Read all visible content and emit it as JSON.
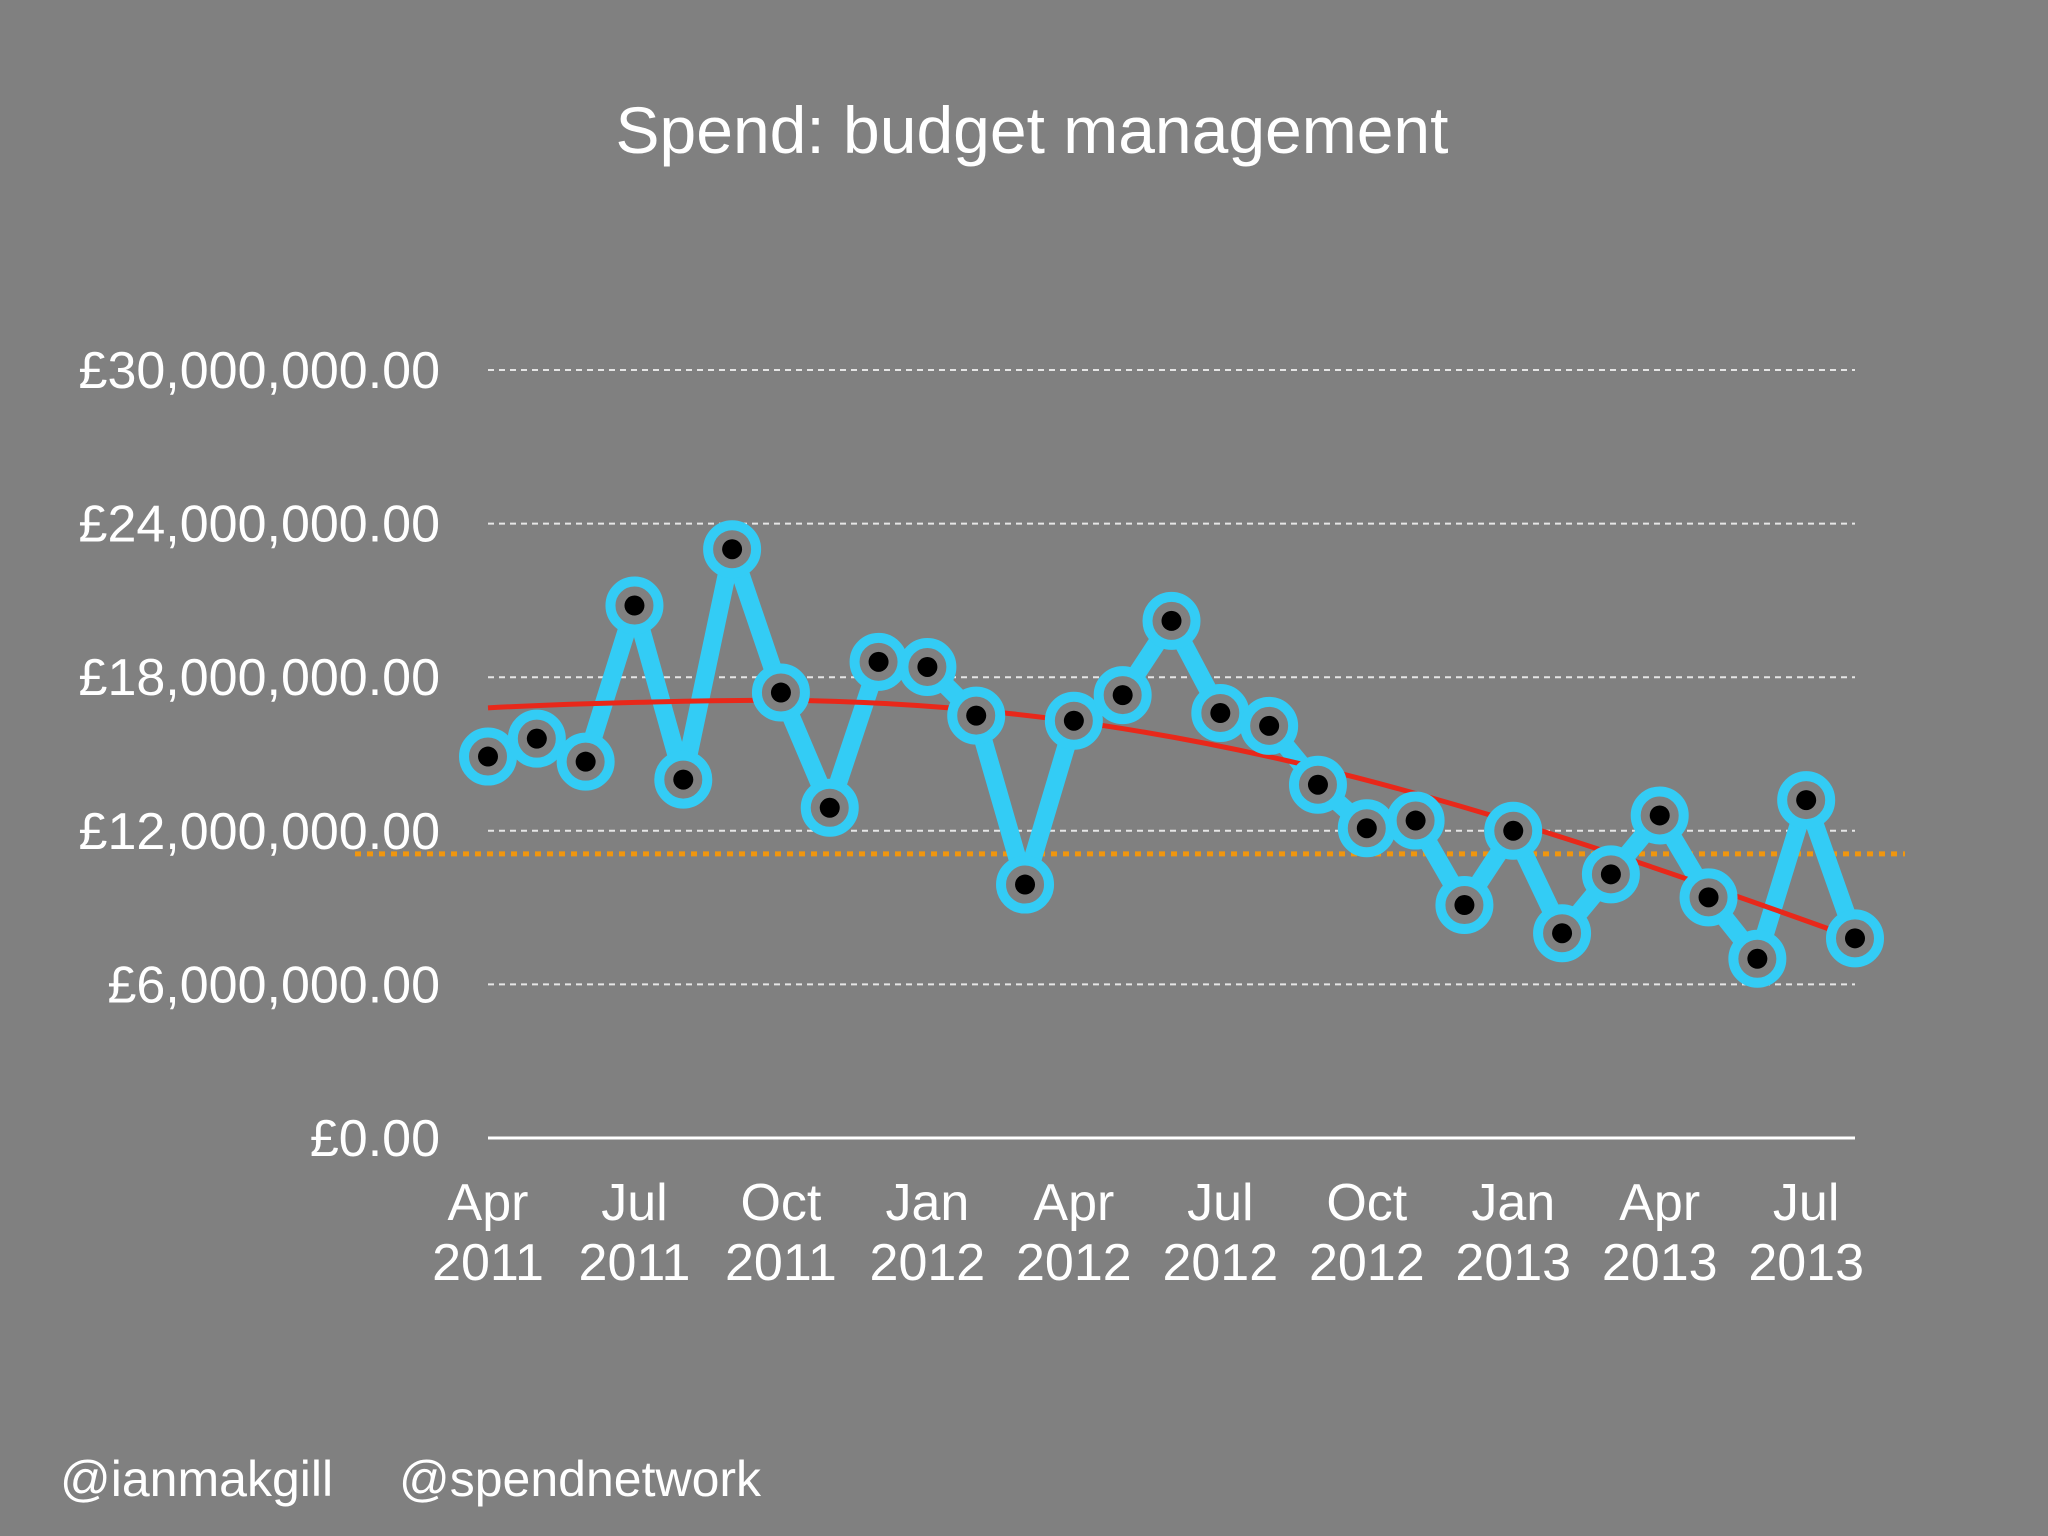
{
  "footer": {
    "handle_1": "@ianmakgill",
    "handle_2": "@spendnetwork"
  },
  "colors": {
    "background": "#808080",
    "series": "#33ccf5",
    "marker_fill": "#000000",
    "trend": "#e8281a",
    "average": "#f0960f",
    "grid": "#e6e6e6",
    "text": "#ffffff"
  },
  "chart_data": {
    "type": "line",
    "title": "Spend: budget management",
    "xlabel": "",
    "ylabel": "",
    "ylim": [
      0,
      30000000
    ],
    "y_ticks": [
      0,
      6000000,
      12000000,
      18000000,
      24000000,
      30000000
    ],
    "y_tick_labels": [
      "£0.00",
      "£6,000,000.00",
      "£12,000,000.00",
      "£18,000,000.00",
      "£24,000,000.00",
      "£30,000,000.00"
    ],
    "x_tick_labels": [
      {
        "month": "Apr",
        "year": "2011",
        "index": 0
      },
      {
        "month": "Jul",
        "year": "2011",
        "index": 3
      },
      {
        "month": "Oct",
        "year": "2011",
        "index": 6
      },
      {
        "month": "Jan",
        "year": "2012",
        "index": 9
      },
      {
        "month": "Apr",
        "year": "2012",
        "index": 12
      },
      {
        "month": "Jul",
        "year": "2012",
        "index": 15
      },
      {
        "month": "Oct",
        "year": "2012",
        "index": 18
      },
      {
        "month": "Jan",
        "year": "2013",
        "index": 21
      },
      {
        "month": "Apr",
        "year": "2013",
        "index": 24
      },
      {
        "month": "Jul",
        "year": "2013",
        "index": 27
      }
    ],
    "grid": "horizontal dotted",
    "legend": "none",
    "series": [
      {
        "x": [
          "Apr 2011",
          "May 2011",
          "Jun 2011",
          "Jul 2011",
          "Aug 2011",
          "Sep 2011",
          "Oct 2011",
          "Nov 2011",
          "Dec 2011",
          "Jan 2012",
          "Feb 2012",
          "Mar 2012",
          "Apr 2012",
          "May 2012",
          "Jun 2012",
          "Jul 2012",
          "Aug 2012",
          "Sep 2012",
          "Oct 2012",
          "Nov 2012",
          "Dec 2012",
          "Jan 2013",
          "Feb 2013",
          "Mar 2013",
          "Apr 2013",
          "May 2013",
          "Jun 2013",
          "Jul 2013",
          "Aug 2013"
        ],
        "values": [
          14900000,
          15600000,
          14700000,
          20800000,
          14000000,
          23000000,
          17400000,
          12900000,
          18600000,
          18400000,
          16500000,
          9900000,
          16300000,
          17300000,
          20200000,
          16600000,
          16100000,
          13800000,
          12100000,
          12400000,
          9100000,
          12000000,
          8000000,
          10300000,
          12600000,
          9400000,
          7000000,
          13200000,
          7800000
        ]
      }
    ],
    "trendline": {
      "type": "polynomial",
      "start": 16800000,
      "peak": 17100000,
      "end": 7800000
    },
    "average_line": 11100000
  }
}
